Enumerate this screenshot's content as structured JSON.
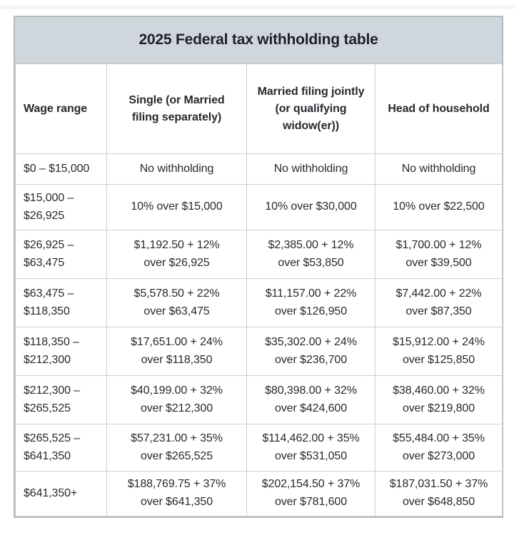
{
  "chart_data": {
    "type": "table",
    "title": "2025 Federal tax withholding table",
    "columns": [
      "Wage range",
      "Single (or Married\nfiling separately)",
      "Married filing jointly\n(or qualifying\nwidow(er))",
      "Head of household"
    ],
    "rows": [
      [
        "$0 – $15,000",
        "No withholding",
        "No withholding",
        "No withholding"
      ],
      [
        "$15,000 –\n$26,925",
        "10% over $15,000",
        "10% over $30,000",
        "10% over $22,500"
      ],
      [
        "$26,925 –\n$63,475",
        "$1,192.50 + 12%\nover $26,925",
        "$2,385.00 + 12%\nover $53,850",
        "$1,700.00 + 12%\nover $39,500"
      ],
      [
        "$63,475 –\n$118,350",
        "$5,578.50 + 22%\nover $63,475",
        "$11,157.00 + 22%\nover $126,950",
        "$7,442.00 + 22%\nover $87,350"
      ],
      [
        "$118,350 –\n$212,300",
        "$17,651.00 + 24%\nover $118,350",
        "$35,302.00 + 24%\nover $236,700",
        "$15,912.00 + 24%\nover $125,850"
      ],
      [
        "$212,300 –\n$265,525",
        "$40,199.00 + 32%\nover $212,300",
        "$80,398.00 + 32%\nover $424,600",
        "$38,460.00 + 32%\nover $219,800"
      ],
      [
        "$265,525 –\n$641,350",
        "$57,231.00 + 35%\nover $265,525",
        "$114,462.00 + 35%\nover $531,050",
        "$55,484.00 + 35%\nover $273,000"
      ],
      [
        "$641,350+",
        "$188,769.75 + 37%\nover $641,350",
        "$202,154.50 + 37%\nover $781,600",
        "$187,031.50 + 37%\nover $648,850"
      ]
    ],
    "layout": {
      "title_bg": "#cfd7dd",
      "border_color": "#cbd0d3",
      "outer_border_color": "#b4babe",
      "text_color": "#26292e"
    }
  }
}
